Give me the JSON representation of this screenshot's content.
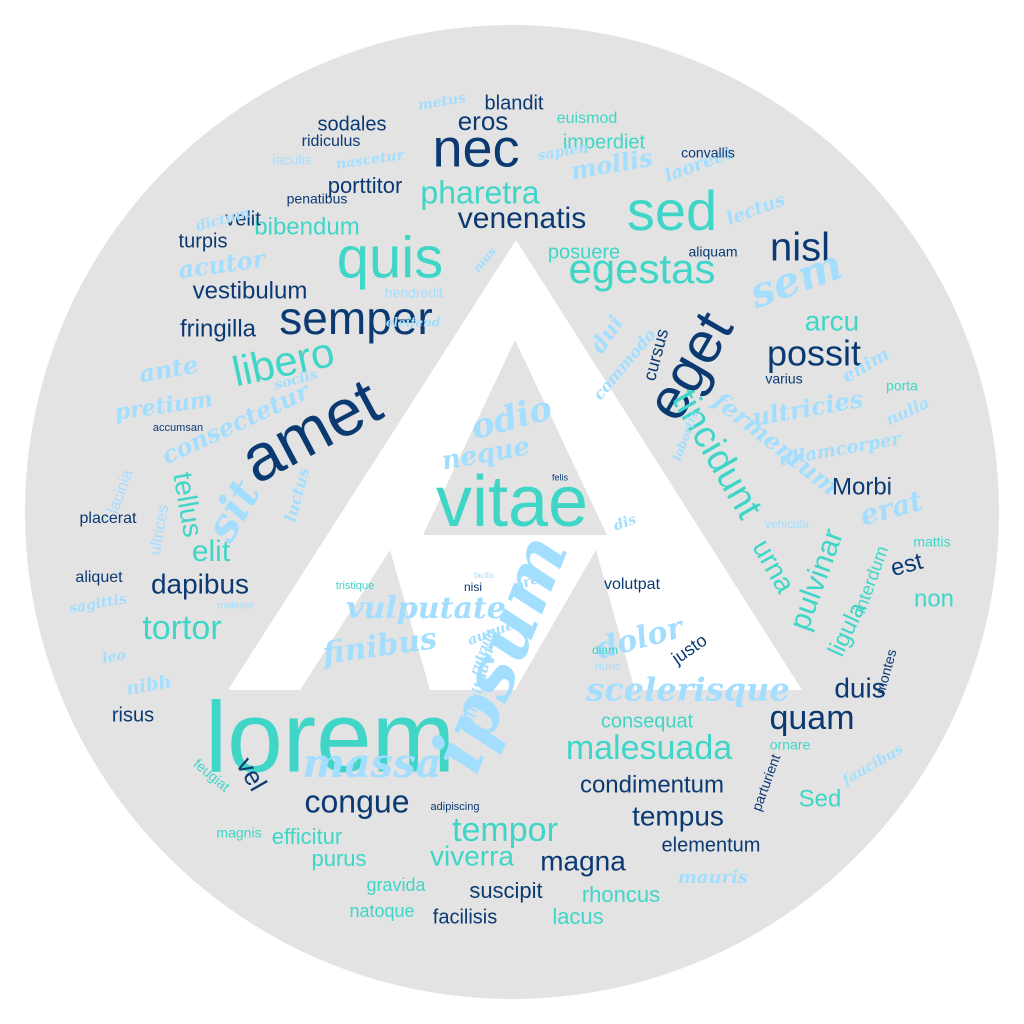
{
  "colors": {
    "background": "#ffffff",
    "circle": "#e3e3e3",
    "triangle": "#ffffff",
    "dark_blue": "#0b3a73",
    "teal": "#3fd6c8",
    "light_blue": "#a3deff"
  },
  "words": [
    {
      "t": "lorem",
      "c": "teal",
      "s": "sans"
    },
    {
      "t": "amet",
      "c": "dark_blue",
      "s": "sans"
    },
    {
      "t": "ipsum",
      "c": "light_blue",
      "s": "script"
    },
    {
      "t": "vitae",
      "c": "teal",
      "s": "sans"
    },
    {
      "t": "eget",
      "c": "dark_blue",
      "s": "sans"
    },
    {
      "t": "quis",
      "c": "teal",
      "s": "sans"
    },
    {
      "t": "nec",
      "c": "dark_blue",
      "s": "sans"
    },
    {
      "t": "sed",
      "c": "teal",
      "s": "sans"
    },
    {
      "t": "semper",
      "c": "dark_blue",
      "s": "sans"
    },
    {
      "t": "sit",
      "c": "light_blue",
      "s": "script"
    },
    {
      "t": "massa",
      "c": "light_blue",
      "s": "script"
    },
    {
      "t": "nisl",
      "c": "dark_blue",
      "s": "sans"
    },
    {
      "t": "sem",
      "c": "light_blue",
      "s": "script"
    },
    {
      "t": "egestas",
      "c": "teal",
      "s": "sans"
    },
    {
      "t": "venenatis",
      "c": "dark_blue",
      "s": "sans"
    },
    {
      "t": "libero",
      "c": "teal",
      "s": "sans"
    },
    {
      "t": "possit",
      "c": "dark_blue",
      "s": "sans"
    },
    {
      "t": "tincidunt",
      "c": "teal",
      "s": "sans"
    },
    {
      "t": "malesuada",
      "c": "teal",
      "s": "sans"
    },
    {
      "t": "tempor",
      "c": "teal",
      "s": "sans"
    },
    {
      "t": "congue",
      "c": "dark_blue",
      "s": "sans"
    },
    {
      "t": "quam",
      "c": "dark_blue",
      "s": "sans"
    },
    {
      "t": "odio",
      "c": "light_blue",
      "s": "script"
    },
    {
      "t": "pharetra",
      "c": "teal",
      "s": "sans"
    },
    {
      "t": "scelerisque",
      "c": "light_blue",
      "s": "script"
    },
    {
      "t": "vulputate",
      "c": "light_blue",
      "s": "script"
    },
    {
      "t": "finibus",
      "c": "light_blue",
      "s": "script"
    },
    {
      "t": "dolor",
      "c": "light_blue",
      "s": "script"
    },
    {
      "t": "tortor",
      "c": "teal",
      "s": "sans"
    },
    {
      "t": "dapibus",
      "c": "dark_blue",
      "s": "sans"
    },
    {
      "t": "elit",
      "c": "teal",
      "s": "sans"
    },
    {
      "t": "tellus",
      "c": "teal",
      "s": "sans"
    },
    {
      "t": "urna",
      "c": "teal",
      "s": "sans"
    },
    {
      "t": "pulvinar",
      "c": "teal",
      "s": "sans"
    },
    {
      "t": "erat",
      "c": "light_blue",
      "s": "script"
    },
    {
      "t": "eros",
      "c": "dark_blue",
      "s": "sans"
    },
    {
      "t": "arcu",
      "c": "teal",
      "s": "sans"
    },
    {
      "t": "viverra",
      "c": "teal",
      "s": "sans"
    },
    {
      "t": "magna",
      "c": "dark_blue",
      "s": "sans"
    },
    {
      "t": "tempus",
      "c": "dark_blue",
      "s": "sans"
    },
    {
      "t": "condimentum",
      "c": "dark_blue",
      "s": "sans"
    },
    {
      "t": "duis",
      "c": "dark_blue",
      "s": "sans"
    },
    {
      "t": "vel",
      "c": "dark_blue",
      "s": "sans"
    },
    {
      "t": "neque",
      "c": "light_blue",
      "s": "script"
    },
    {
      "t": "vestibulum",
      "c": "dark_blue",
      "s": "sans"
    },
    {
      "t": "fringilla",
      "c": "dark_blue",
      "s": "sans"
    },
    {
      "t": "bibendum",
      "c": "teal",
      "s": "sans"
    },
    {
      "t": "porttitor",
      "c": "dark_blue",
      "s": "sans"
    },
    {
      "t": "velit",
      "c": "dark_blue",
      "s": "sans"
    },
    {
      "t": "mollis",
      "c": "light_blue",
      "s": "script"
    },
    {
      "t": "ultricies",
      "c": "light_blue",
      "s": "script"
    },
    {
      "t": "fermentum",
      "c": "light_blue",
      "s": "script"
    },
    {
      "t": "consectetur",
      "c": "light_blue",
      "s": "script"
    },
    {
      "t": "ante",
      "c": "light_blue",
      "s": "script"
    },
    {
      "t": "pretium",
      "c": "light_blue",
      "s": "script"
    },
    {
      "t": "acutor",
      "c": "light_blue",
      "s": "script"
    },
    {
      "t": "Morbi",
      "c": "dark_blue",
      "s": "sans"
    },
    {
      "t": "est",
      "c": "dark_blue",
      "s": "sans"
    },
    {
      "t": "non",
      "c": "teal",
      "s": "sans"
    },
    {
      "t": "ligula",
      "c": "teal",
      "s": "sans"
    },
    {
      "t": "purus",
      "c": "teal",
      "s": "sans"
    },
    {
      "t": "efficitur",
      "c": "teal",
      "s": "sans"
    },
    {
      "t": "suscipit",
      "c": "dark_blue",
      "s": "sans"
    },
    {
      "t": "lacus",
      "c": "teal",
      "s": "sans"
    },
    {
      "t": "rhoncus",
      "c": "teal",
      "s": "sans"
    },
    {
      "t": "elementum",
      "c": "dark_blue",
      "s": "sans"
    },
    {
      "t": "consequat",
      "c": "teal",
      "s": "sans"
    },
    {
      "t": "Sed",
      "c": "teal",
      "s": "sans"
    },
    {
      "t": "posuere",
      "c": "teal",
      "s": "sans"
    },
    {
      "t": "imperdiet",
      "c": "teal",
      "s": "sans"
    },
    {
      "t": "sodales",
      "c": "dark_blue",
      "s": "sans"
    },
    {
      "t": "blandit",
      "c": "dark_blue",
      "s": "sans"
    },
    {
      "t": "turpis",
      "c": "dark_blue",
      "s": "sans"
    },
    {
      "t": "cursus",
      "c": "dark_blue",
      "s": "sans"
    },
    {
      "t": "justo",
      "c": "dark_blue",
      "s": "sans"
    },
    {
      "t": "risus",
      "c": "dark_blue",
      "s": "sans"
    },
    {
      "t": "facilisis",
      "c": "dark_blue",
      "s": "sans"
    },
    {
      "t": "gravida",
      "c": "teal",
      "s": "sans"
    },
    {
      "t": "natoque",
      "c": "teal",
      "s": "sans"
    },
    {
      "t": "interdum",
      "c": "teal",
      "s": "sans"
    },
    {
      "t": "volutpat",
      "c": "dark_blue",
      "s": "sans"
    },
    {
      "t": "aliquet",
      "c": "dark_blue",
      "s": "sans"
    },
    {
      "t": "placerat",
      "c": "dark_blue",
      "s": "sans"
    },
    {
      "t": "lacinia",
      "c": "light_blue",
      "s": "sans"
    },
    {
      "t": "ultrices",
      "c": "light_blue",
      "s": "sans"
    },
    {
      "t": "ullamcorper",
      "c": "light_blue",
      "s": "script"
    },
    {
      "t": "laoreet",
      "c": "light_blue",
      "s": "script"
    },
    {
      "t": "lectus",
      "c": "light_blue",
      "s": "script"
    },
    {
      "t": "sapien",
      "c": "light_blue",
      "s": "script"
    },
    {
      "t": "nascetur",
      "c": "light_blue",
      "s": "script"
    },
    {
      "t": "metus",
      "c": "light_blue",
      "s": "script"
    },
    {
      "t": "convallis",
      "c": "dark_blue",
      "s": "sans"
    },
    {
      "t": "euismod",
      "c": "teal",
      "s": "sans"
    },
    {
      "t": "ridiculus",
      "c": "dark_blue",
      "s": "sans"
    },
    {
      "t": "iaculis",
      "c": "light_blue",
      "s": "sans"
    },
    {
      "t": "penatibus",
      "c": "dark_blue",
      "s": "sans"
    },
    {
      "t": "dictum",
      "c": "light_blue",
      "s": "script"
    },
    {
      "t": "aliquam",
      "c": "dark_blue",
      "s": "sans"
    },
    {
      "t": "hendredit",
      "c": "light_blue",
      "s": "sans"
    },
    {
      "t": "mus",
      "c": "light_blue",
      "s": "script"
    },
    {
      "t": "dui",
      "c": "light_blue",
      "s": "script"
    },
    {
      "t": "commodo",
      "c": "light_blue",
      "s": "script"
    },
    {
      "t": "eleifend",
      "c": "light_blue",
      "s": "script"
    },
    {
      "t": "sociis",
      "c": "light_blue",
      "s": "script"
    },
    {
      "t": "accumsan",
      "c": "dark_blue",
      "s": "sans"
    },
    {
      "t": "luctus",
      "c": "light_blue",
      "s": "script"
    },
    {
      "t": "varius",
      "c": "dark_blue",
      "s": "sans"
    },
    {
      "t": "enim",
      "c": "light_blue",
      "s": "script"
    },
    {
      "t": "porta",
      "c": "teal",
      "s": "sans"
    },
    {
      "t": "nulla",
      "c": "light_blue",
      "s": "script"
    },
    {
      "t": "lobortis",
      "c": "light_blue",
      "s": "script"
    },
    {
      "t": "felis",
      "c": "dark_blue",
      "s": "sans"
    },
    {
      "t": "dis",
      "c": "light_blue",
      "s": "script"
    },
    {
      "t": "vehicula",
      "c": "light_blue",
      "s": "sans"
    },
    {
      "t": "mattis",
      "c": "teal",
      "s": "sans"
    },
    {
      "t": "montes",
      "c": "dark_blue",
      "s": "sans"
    },
    {
      "t": "ornare",
      "c": "teal",
      "s": "sans"
    },
    {
      "t": "parturient",
      "c": "dark_blue",
      "s": "sans"
    },
    {
      "t": "faucibus",
      "c": "light_blue",
      "s": "script"
    },
    {
      "t": "nunc",
      "c": "light_blue",
      "s": "sans"
    },
    {
      "t": "diam",
      "c": "teal",
      "s": "sans"
    },
    {
      "t": "orci",
      "c": "light_blue",
      "s": "script"
    },
    {
      "t": "augue",
      "c": "light_blue",
      "s": "script"
    },
    {
      "t": "nisi",
      "c": "dark_blue",
      "s": "sans"
    },
    {
      "t": "facilis",
      "c": "light_blue",
      "s": "sans"
    },
    {
      "t": "rutrum",
      "c": "light_blue",
      "s": "script"
    },
    {
      "t": "sollicitudin",
      "c": "light_blue",
      "s": "script"
    },
    {
      "t": "tristique",
      "c": "teal",
      "s": "sans"
    },
    {
      "t": "molestie",
      "c": "light_blue",
      "s": "sans"
    },
    {
      "t": "sagittis",
      "c": "light_blue",
      "s": "script"
    },
    {
      "t": "leo",
      "c": "light_blue",
      "s": "script"
    },
    {
      "t": "nibh",
      "c": "light_blue",
      "s": "script"
    },
    {
      "t": "feugiat",
      "c": "teal",
      "s": "sans"
    },
    {
      "t": "magnis",
      "c": "teal",
      "s": "sans"
    },
    {
      "t": "adipiscing",
      "c": "dark_blue",
      "s": "sans"
    },
    {
      "t": "mauris",
      "c": "light_blue",
      "s": "script"
    }
  ]
}
